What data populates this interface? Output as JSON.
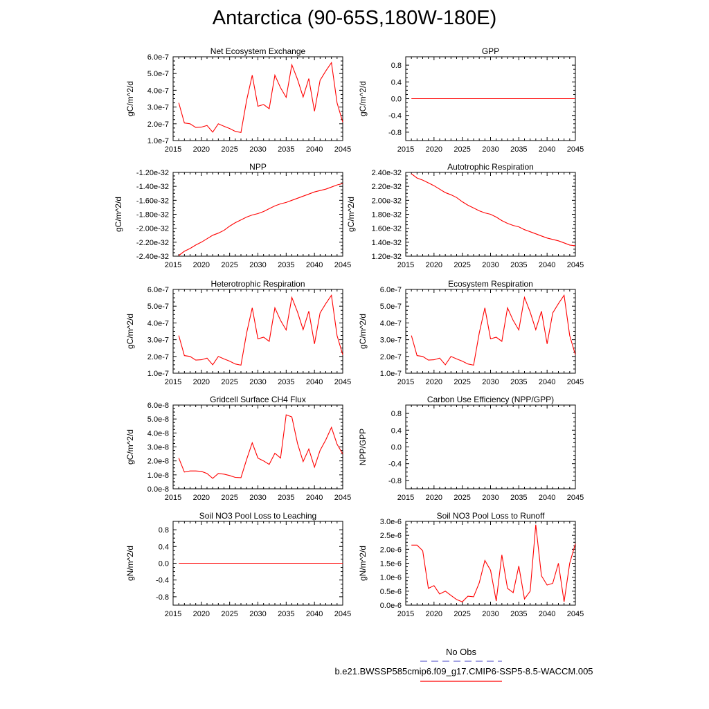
{
  "title": "Antarctica (90-65S,180W-180E)",
  "colors": {
    "series": "#ff0000",
    "obs": "#6a6ad0",
    "axis": "#000000"
  },
  "legend": {
    "obs_label": "No Obs",
    "case_label": "b.e21.BWSSP585cmip6.f09_g17.CMIP6-SSP5-8.5-WACCM.005"
  },
  "chart_data": [
    {
      "type": "line",
      "title": "Net Ecosystem Exchange",
      "ylabel": "gC/m^2/d",
      "xlim": [
        2015,
        2045
      ],
      "xticks": [
        2015,
        2020,
        2025,
        2030,
        2035,
        2040,
        2045
      ],
      "ylim": [
        1e-07,
        6e-07
      ],
      "ytick_labels": [
        "1.0e-7",
        "2.0e-7",
        "3.0e-7",
        "4.0e-7",
        "5.0e-7",
        "6.0e-7"
      ],
      "ytick_values": [
        1e-07,
        2e-07,
        3e-07,
        4e-07,
        5e-07,
        6e-07
      ],
      "x": [
        2016,
        2017,
        2018,
        2019,
        2020,
        2021,
        2022,
        2023,
        2024,
        2025,
        2026,
        2027,
        2028,
        2029,
        2030,
        2031,
        2032,
        2033,
        2034,
        2035,
        2036,
        2037,
        2038,
        2039,
        2040,
        2041,
        2042,
        2043,
        2044,
        2045
      ],
      "values": [
        3.25e-07,
        2.05e-07,
        2e-07,
        1.78e-07,
        1.8e-07,
        1.9e-07,
        1.5e-07,
        2e-07,
        1.85e-07,
        1.72e-07,
        1.55e-07,
        1.48e-07,
        3.4e-07,
        4.9e-07,
        3.05e-07,
        3.15e-07,
        2.9e-07,
        4.9e-07,
        4.15e-07,
        3.58e-07,
        5.52e-07,
        4.65e-07,
        3.6e-07,
        4.7e-07,
        2.75e-07,
        4.6e-07,
        5.15e-07,
        5.65e-07,
        3.25e-07,
        2.1e-07
      ]
    },
    {
      "type": "line",
      "title": "GPP",
      "ylabel": "gC/m^2/d",
      "xlim": [
        2015,
        2045
      ],
      "xticks": [
        2015,
        2020,
        2025,
        2030,
        2035,
        2040,
        2045
      ],
      "ylim": [
        -1.0,
        1.0
      ],
      "ytick_labels": [
        "-0.8",
        "-0.4",
        "0.0",
        "0.4",
        "0.8"
      ],
      "ytick_values": [
        -0.8,
        -0.4,
        0.0,
        0.4,
        0.8
      ],
      "x": [
        2016,
        2045
      ],
      "values": [
        0.0,
        0.0
      ]
    },
    {
      "type": "line",
      "title": "NPP",
      "ylabel": "gC/m^2/d",
      "xlim": [
        2015,
        2045
      ],
      "xticks": [
        2015,
        2020,
        2025,
        2030,
        2035,
        2040,
        2045
      ],
      "ylim": [
        -2.4e-32,
        -1.2e-32
      ],
      "ytick_labels": [
        "-2.40e-32",
        "-2.20e-32",
        "-2.00e-32",
        "-1.80e-32",
        "-1.60e-32",
        "-1.40e-32",
        "-1.20e-32"
      ],
      "ytick_values": [
        -2.4e-32,
        -2.2e-32,
        -2e-32,
        -1.8e-32,
        -1.6e-32,
        -1.4e-32,
        -1.2e-32
      ],
      "x": [
        2016,
        2017,
        2018,
        2019,
        2020,
        2021,
        2022,
        2023,
        2024,
        2025,
        2026,
        2027,
        2028,
        2029,
        2030,
        2031,
        2032,
        2033,
        2034,
        2035,
        2036,
        2037,
        2038,
        2039,
        2040,
        2041,
        2042,
        2043,
        2044,
        2045
      ],
      "values": [
        -2.39e-32,
        -2.33e-32,
        -2.29e-32,
        -2.24e-32,
        -2.2e-32,
        -2.15e-32,
        -2.1e-32,
        -2.07e-32,
        -2.03e-32,
        -1.97e-32,
        -1.92e-32,
        -1.88e-32,
        -1.84e-32,
        -1.81e-32,
        -1.79e-32,
        -1.76e-32,
        -1.72e-32,
        -1.68e-32,
        -1.65e-32,
        -1.63e-32,
        -1.6e-32,
        -1.57e-32,
        -1.54e-32,
        -1.51e-32,
        -1.48e-32,
        -1.46e-32,
        -1.44e-32,
        -1.41e-32,
        -1.38e-32,
        -1.36e-32
      ]
    },
    {
      "type": "line",
      "title": "Autotrophic Respiration",
      "ylabel": "gC/m^2/d",
      "xlim": [
        2015,
        2045
      ],
      "xticks": [
        2015,
        2020,
        2025,
        2030,
        2035,
        2040,
        2045
      ],
      "ylim": [
        1.2e-32,
        2.4e-32
      ],
      "ytick_labels": [
        "1.20e-32",
        "1.40e-32",
        "1.60e-32",
        "1.80e-32",
        "2.00e-32",
        "2.20e-32",
        "2.40e-32"
      ],
      "ytick_values": [
        1.2e-32,
        1.4e-32,
        1.6e-32,
        1.8e-32,
        2e-32,
        2.2e-32,
        2.4e-32
      ],
      "x": [
        2016,
        2017,
        2018,
        2019,
        2020,
        2021,
        2022,
        2023,
        2024,
        2025,
        2026,
        2027,
        2028,
        2029,
        2030,
        2031,
        2032,
        2033,
        2034,
        2035,
        2036,
        2037,
        2038,
        2039,
        2040,
        2041,
        2042,
        2043,
        2044,
        2045
      ],
      "values": [
        2.38e-32,
        2.32e-32,
        2.29e-32,
        2.25e-32,
        2.21e-32,
        2.16e-32,
        2.11e-32,
        2.08e-32,
        2.04e-32,
        1.98e-32,
        1.93e-32,
        1.89e-32,
        1.85e-32,
        1.82e-32,
        1.8e-32,
        1.76e-32,
        1.71e-32,
        1.67e-32,
        1.64e-32,
        1.62e-32,
        1.58e-32,
        1.55e-32,
        1.52e-32,
        1.49e-32,
        1.46e-32,
        1.44e-32,
        1.42e-32,
        1.39e-32,
        1.36e-32,
        1.35e-32
      ]
    },
    {
      "type": "line",
      "title": "Heterotrophic Respiration",
      "ylabel": "gC/m^2/d",
      "xlim": [
        2015,
        2045
      ],
      "xticks": [
        2015,
        2020,
        2025,
        2030,
        2035,
        2040,
        2045
      ],
      "ylim": [
        1e-07,
        6e-07
      ],
      "ytick_labels": [
        "1.0e-7",
        "2.0e-7",
        "3.0e-7",
        "4.0e-7",
        "5.0e-7",
        "6.0e-7"
      ],
      "ytick_values": [
        1e-07,
        2e-07,
        3e-07,
        4e-07,
        5e-07,
        6e-07
      ],
      "x": [
        2016,
        2017,
        2018,
        2019,
        2020,
        2021,
        2022,
        2023,
        2024,
        2025,
        2026,
        2027,
        2028,
        2029,
        2030,
        2031,
        2032,
        2033,
        2034,
        2035,
        2036,
        2037,
        2038,
        2039,
        2040,
        2041,
        2042,
        2043,
        2044,
        2045
      ],
      "values": [
        3.25e-07,
        2.05e-07,
        2e-07,
        1.78e-07,
        1.8e-07,
        1.9e-07,
        1.5e-07,
        2e-07,
        1.85e-07,
        1.72e-07,
        1.55e-07,
        1.48e-07,
        3.4e-07,
        4.9e-07,
        3.05e-07,
        3.15e-07,
        2.9e-07,
        4.9e-07,
        4.15e-07,
        3.58e-07,
        5.52e-07,
        4.65e-07,
        3.6e-07,
        4.7e-07,
        2.75e-07,
        4.6e-07,
        5.15e-07,
        5.65e-07,
        3.25e-07,
        2.1e-07
      ]
    },
    {
      "type": "line",
      "title": "Ecosystem Respiration",
      "ylabel": "gC/m^2/d",
      "xlim": [
        2015,
        2045
      ],
      "xticks": [
        2015,
        2020,
        2025,
        2030,
        2035,
        2040,
        2045
      ],
      "ylim": [
        1e-07,
        6e-07
      ],
      "ytick_labels": [
        "1.0e-7",
        "2.0e-7",
        "3.0e-7",
        "4.0e-7",
        "5.0e-7",
        "6.0e-7"
      ],
      "ytick_values": [
        1e-07,
        2e-07,
        3e-07,
        4e-07,
        5e-07,
        6e-07
      ],
      "x": [
        2016,
        2017,
        2018,
        2019,
        2020,
        2021,
        2022,
        2023,
        2024,
        2025,
        2026,
        2027,
        2028,
        2029,
        2030,
        2031,
        2032,
        2033,
        2034,
        2035,
        2036,
        2037,
        2038,
        2039,
        2040,
        2041,
        2042,
        2043,
        2044,
        2045
      ],
      "values": [
        3.25e-07,
        2.05e-07,
        2e-07,
        1.78e-07,
        1.8e-07,
        1.9e-07,
        1.5e-07,
        2e-07,
        1.85e-07,
        1.72e-07,
        1.55e-07,
        1.48e-07,
        3.4e-07,
        4.9e-07,
        3.05e-07,
        3.15e-07,
        2.9e-07,
        4.9e-07,
        4.15e-07,
        3.58e-07,
        5.52e-07,
        4.65e-07,
        3.6e-07,
        4.7e-07,
        2.75e-07,
        4.6e-07,
        5.15e-07,
        5.65e-07,
        3.25e-07,
        2.1e-07
      ]
    },
    {
      "type": "line",
      "title": "Gridcell Surface CH4 Flux",
      "ylabel": "gC/m^2/d",
      "xlim": [
        2015,
        2045
      ],
      "xticks": [
        2015,
        2020,
        2025,
        2030,
        2035,
        2040,
        2045
      ],
      "ylim": [
        0.0,
        6e-08
      ],
      "ytick_labels": [
        "0.0e-8",
        "1.0e-8",
        "2.0e-8",
        "3.0e-8",
        "4.0e-8",
        "5.0e-8",
        "6.0e-8"
      ],
      "ytick_values": [
        0.0,
        1e-08,
        2e-08,
        3e-08,
        4e-08,
        5e-08,
        6e-08
      ],
      "x": [
        2016,
        2017,
        2018,
        2019,
        2020,
        2021,
        2022,
        2023,
        2024,
        2025,
        2026,
        2027,
        2028,
        2029,
        2030,
        2031,
        2032,
        2033,
        2034,
        2035,
        2036,
        2037,
        2038,
        2039,
        2040,
        2041,
        2042,
        2043,
        2044,
        2045
      ],
      "values": [
        2.2e-08,
        1.2e-08,
        1.28e-08,
        1.28e-08,
        1.25e-08,
        1.1e-08,
        7.5e-09,
        1.1e-08,
        1.05e-08,
        9.5e-09,
        8.2e-09,
        8e-09,
        2.1e-08,
        3.3e-08,
        2.2e-08,
        2e-08,
        1.75e-08,
        2.55e-08,
        2.2e-08,
        5.3e-08,
        5.15e-08,
        3.25e-08,
        1.95e-08,
        2.85e-08,
        1.55e-08,
        2.75e-08,
        3.5e-08,
        4.4e-08,
        3.2e-08,
        2.5e-08
      ]
    },
    {
      "type": "line",
      "title": "Carbon Use Efficiency (NPP/GPP)",
      "ylabel": "NPP/GPP",
      "xlim": [
        2015,
        2045
      ],
      "xticks": [
        2015,
        2020,
        2025,
        2030,
        2035,
        2040,
        2045
      ],
      "ylim": [
        -1.0,
        1.0
      ],
      "ytick_labels": [
        "-0.8",
        "-0.4",
        "0.0",
        "0.4",
        "0.8"
      ],
      "ytick_values": [
        -0.8,
        -0.4,
        0.0,
        0.4,
        0.8
      ],
      "x": [],
      "values": []
    },
    {
      "type": "line",
      "title": "Soil NO3 Pool Loss to Leaching",
      "ylabel": "gN/m^2/d",
      "xlim": [
        2015,
        2045
      ],
      "xticks": [
        2015,
        2020,
        2025,
        2030,
        2035,
        2040,
        2045
      ],
      "ylim": [
        -1.0,
        1.0
      ],
      "ytick_labels": [
        "-0.8",
        "-0.4",
        "0.0",
        "0.4",
        "0.8"
      ],
      "ytick_values": [
        -0.8,
        -0.4,
        0.0,
        0.4,
        0.8
      ],
      "x": [
        2016,
        2045
      ],
      "values": [
        0.0,
        0.0
      ]
    },
    {
      "type": "line",
      "title": "Soil NO3 Pool Loss to Runoff",
      "ylabel": "gN/m^2/d",
      "xlim": [
        2015,
        2045
      ],
      "xticks": [
        2015,
        2020,
        2025,
        2030,
        2035,
        2040,
        2045
      ],
      "ylim": [
        0.0,
        3e-06
      ],
      "ytick_labels": [
        "0.0e-6",
        "0.5e-6",
        "1.0e-6",
        "1.5e-6",
        "2.0e-6",
        "2.5e-6",
        "3.0e-6"
      ],
      "ytick_values": [
        0.0,
        5e-07,
        1e-06,
        1.5e-06,
        2e-06,
        2.5e-06,
        3e-06
      ],
      "x": [
        2016,
        2017,
        2018,
        2019,
        2020,
        2021,
        2022,
        2023,
        2024,
        2025,
        2026,
        2027,
        2028,
        2029,
        2030,
        2031,
        2032,
        2033,
        2034,
        2035,
        2036,
        2037,
        2038,
        2039,
        2040,
        2041,
        2042,
        2043,
        2044,
        2045
      ],
      "values": [
        2.15e-06,
        2.15e-06,
        1.95e-06,
        6e-07,
        7e-07,
        4e-07,
        5e-07,
        3.5e-07,
        2e-07,
        1.2e-07,
        3.2e-07,
        3e-07,
        8e-07,
        1.6e-06,
        1.25e-06,
        1.5e-07,
        1.8e-06,
        6e-07,
        4.5e-07,
        1.4e-06,
        2.2e-07,
        5e-07,
        2.88e-06,
        1.05e-06,
        7.2e-07,
        7.8e-07,
        1.5e-06,
        1.2e-07,
        1.5e-06,
        2.2e-06
      ]
    }
  ]
}
